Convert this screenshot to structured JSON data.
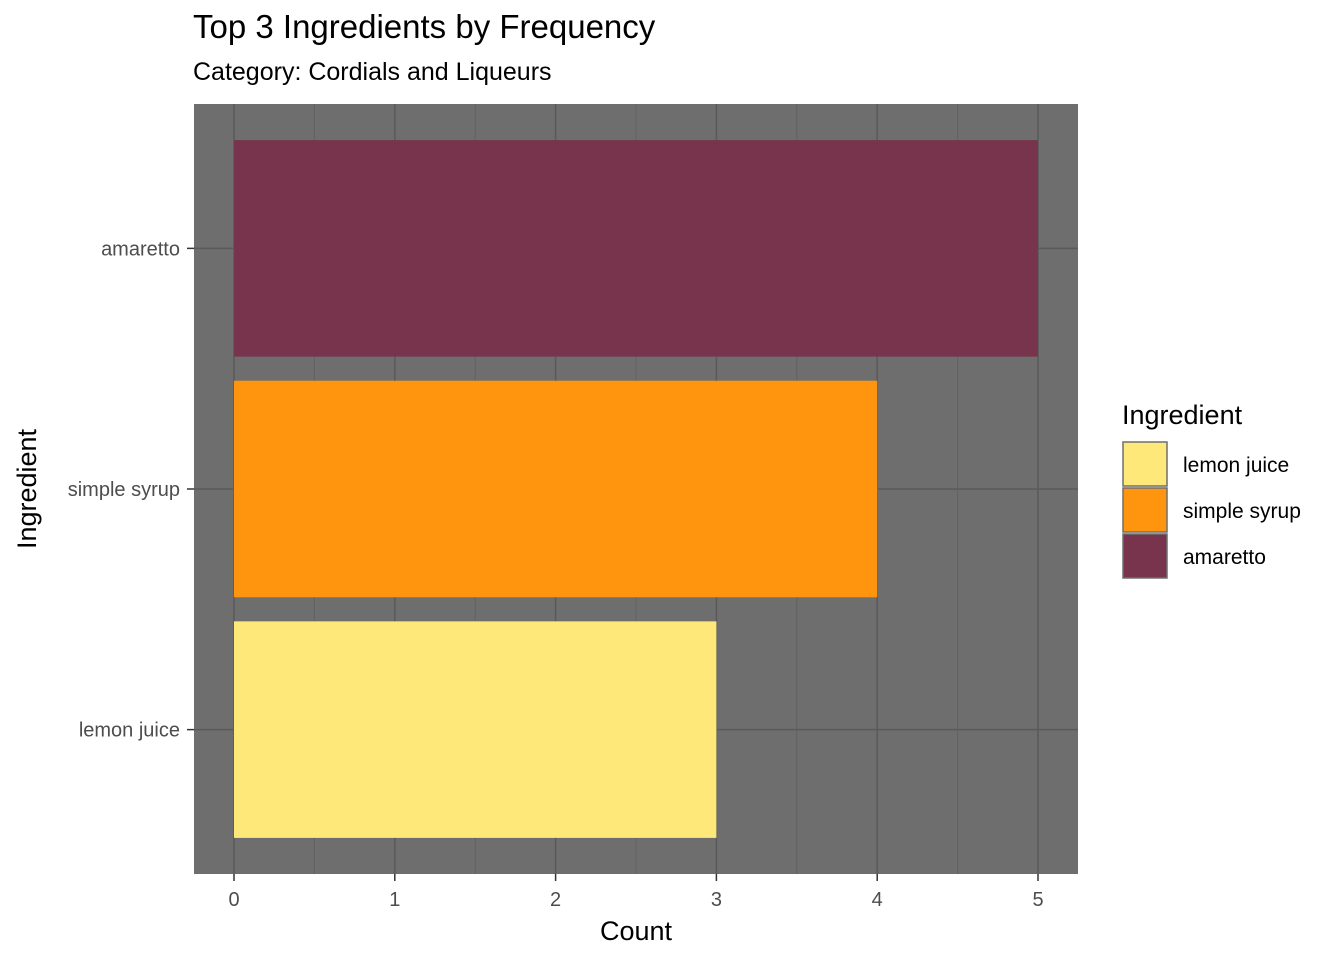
{
  "chart_data": {
    "type": "bar",
    "orientation": "horizontal",
    "title": "Top 3 Ingredients by Frequency",
    "subtitle": "Category: Cordials and Liqueurs",
    "xlabel": "Count",
    "ylabel": "Ingredient",
    "categories": [
      "lemon juice",
      "simple syrup",
      "amaretto"
    ],
    "values": [
      3,
      4,
      5
    ],
    "colors": [
      "#FFE87A",
      "#FF950E",
      "#77344C"
    ],
    "xlim": [
      0,
      5
    ],
    "xticks": [
      "0",
      "1",
      "2",
      "3",
      "4",
      "5"
    ],
    "grid": true,
    "panel_background": "#6E6E6E",
    "legend": {
      "title": "Ingredient",
      "position": "right",
      "entries": [
        " lemon juice",
        "simple syrup",
        "amaretto"
      ]
    }
  }
}
